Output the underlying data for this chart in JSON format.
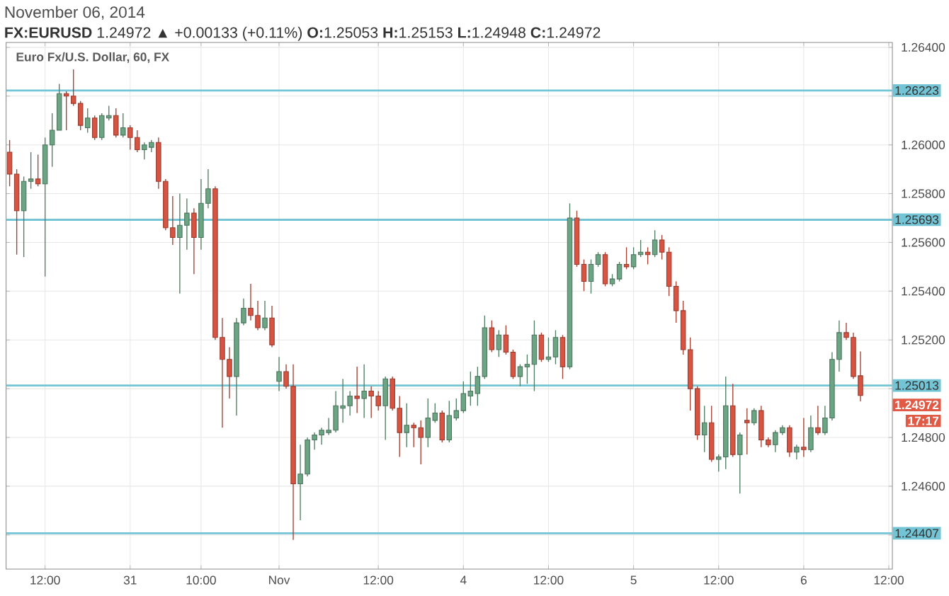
{
  "chart_data": {
    "type": "candlestick",
    "title": "Euro Fx/U.S. Dollar, 60, FX",
    "subtitle": "**FX:EURUSD** 1.24972 ▲ +0.00133 (+0.11%) **O:**1.25053 **H:**1.25153 **L:**1.24948 **C:**1.24972",
    "annotations": [
      "November 06, 2014",
      "1.24972",
      "17:17"
    ],
    "categories": [
      null,
      null,
      null,
      null,
      null,
      "12:00",
      null,
      null,
      null,
      null,
      null,
      null,
      null,
      null,
      null,
      null,
      null,
      "31",
      null,
      null,
      null,
      null,
      null,
      null,
      null,
      null,
      null,
      "10:00",
      null,
      null,
      null,
      null,
      null,
      null,
      null,
      null,
      null,
      null,
      "Nov",
      null,
      null,
      null,
      null,
      null,
      null,
      null,
      null,
      null,
      null,
      null,
      null,
      null,
      "12:00",
      null,
      null,
      null,
      null,
      null,
      null,
      null,
      null,
      null,
      null,
      null,
      "4",
      null,
      null,
      null,
      null,
      null,
      null,
      null,
      null,
      null,
      null,
      null,
      "12:00",
      null,
      null,
      null,
      null,
      null,
      null,
      null,
      null,
      null,
      null,
      null,
      "5",
      null,
      null,
      null,
      null,
      null,
      null,
      null,
      null,
      null,
      null,
      null,
      "12:00",
      null,
      null,
      null,
      null,
      null,
      null,
      null,
      null,
      null,
      null,
      null,
      "6",
      null,
      null,
      null,
      null,
      null,
      null,
      null,
      null,
      null,
      null,
      null,
      "12:00"
    ],
    "ohlc": [
      [
        1.2597,
        1.2602,
        1.2583,
        1.2588
      ],
      [
        1.2588,
        1.259,
        1.2555,
        1.2573
      ],
      [
        1.2573,
        1.2587,
        1.2554,
        1.2585
      ],
      [
        1.2585,
        1.2597,
        1.2582,
        1.2586
      ],
      [
        1.2586,
        1.2596,
        1.2583,
        1.2584
      ],
      [
        1.2584,
        1.2603,
        1.2546,
        1.26
      ],
      [
        1.26,
        1.2613,
        1.2591,
        1.2606
      ],
      [
        1.2606,
        1.2625,
        1.2606,
        1.2621
      ],
      [
        1.2621,
        1.2622,
        1.2606,
        1.262
      ],
      [
        1.262,
        1.2631,
        1.2616,
        1.2617
      ],
      [
        1.2617,
        1.2618,
        1.2606,
        1.2608
      ],
      [
        1.2607,
        1.2615,
        1.2605,
        1.2611
      ],
      [
        1.2611,
        1.2612,
        1.2602,
        1.2603
      ],
      [
        1.2603,
        1.2613,
        1.2602,
        1.2612
      ],
      [
        1.2611,
        1.2616,
        1.261,
        1.2612
      ],
      [
        1.2612,
        1.2615,
        1.2603,
        1.2604
      ],
      [
        1.2604,
        1.2613,
        1.2603,
        1.2607
      ],
      [
        1.2607,
        1.2608,
        1.2598,
        1.2603
      ],
      [
        1.2603,
        1.2606,
        1.2597,
        1.2598
      ],
      [
        1.2598,
        1.2601,
        1.2594,
        1.26
      ],
      [
        1.2599,
        1.2602,
        1.2597,
        1.2601
      ],
      [
        1.2601,
        1.2603,
        1.2582,
        1.2585
      ],
      [
        1.2585,
        1.2586,
        1.2565,
        1.2566
      ],
      [
        1.2566,
        1.2579,
        1.2559,
        1.2562
      ],
      [
        1.2562,
        1.258,
        1.2539,
        1.2567
      ],
      [
        1.2567,
        1.2578,
        1.2557,
        1.2572
      ],
      [
        1.2572,
        1.2574,
        1.2547,
        1.2562
      ],
      [
        1.2562,
        1.2586,
        1.2557,
        1.2576
      ],
      [
        1.2576,
        1.259,
        1.2574,
        1.2582
      ],
      [
        1.2582,
        1.2583,
        1.252,
        1.2521
      ],
      [
        1.2521,
        1.2529,
        1.2484,
        1.2512
      ],
      [
        1.2512,
        1.2517,
        1.2496,
        1.2505
      ],
      [
        1.2505,
        1.2529,
        1.2489,
        1.2527
      ],
      [
        1.2527,
        1.2537,
        1.2526,
        1.2533
      ],
      [
        1.2533,
        1.2543,
        1.2528,
        1.253
      ],
      [
        1.253,
        1.2536,
        1.2524,
        1.2525
      ],
      [
        1.2525,
        1.2536,
        1.2524,
        1.2529
      ],
      [
        1.2529,
        1.2534,
        1.2517,
        1.2518
      ],
      [
        1.2503,
        1.2513,
        1.2499,
        1.2507
      ],
      [
        1.2507,
        1.251,
        1.25,
        1.2501
      ],
      [
        1.2501,
        1.251,
        1.2438,
        1.2461
      ],
      [
        1.2461,
        1.2477,
        1.2446,
        1.2465
      ],
      [
        1.2465,
        1.248,
        1.2464,
        1.2479
      ],
      [
        1.2479,
        1.2482,
        1.2475,
        1.2481
      ],
      [
        1.2481,
        1.2484,
        1.2477,
        1.2483
      ],
      [
        1.2482,
        1.2488,
        1.2481,
        1.2483
      ],
      [
        1.2483,
        1.2499,
        1.2482,
        1.2493
      ],
      [
        1.2492,
        1.2504,
        1.2486,
        1.2493
      ],
      [
        1.2493,
        1.2499,
        1.2489,
        1.2497
      ],
      [
        1.2497,
        1.2509,
        1.249,
        1.2496
      ],
      [
        1.2496,
        1.251,
        1.2488,
        1.2499
      ],
      [
        1.2499,
        1.2501,
        1.2488,
        1.2497
      ],
      [
        1.2497,
        1.2499,
        1.2491,
        1.2493
      ],
      [
        1.2493,
        1.2505,
        1.2479,
        1.2504
      ],
      [
        1.2504,
        1.2505,
        1.2491,
        1.2492
      ],
      [
        1.2492,
        1.2497,
        1.2472,
        1.2482
      ],
      [
        1.2482,
        1.2494,
        1.2476,
        1.2485
      ],
      [
        1.2485,
        1.2486,
        1.2476,
        1.2484
      ],
      [
        1.2484,
        1.2487,
        1.2469,
        1.248
      ],
      [
        1.248,
        1.2496,
        1.2476,
        1.2488
      ],
      [
        1.2487,
        1.2494,
        1.2486,
        1.249
      ],
      [
        1.249,
        1.2491,
        1.2478,
        1.2479
      ],
      [
        1.2479,
        1.2495,
        1.2478,
        1.2489
      ],
      [
        1.2488,
        1.2496,
        1.2487,
        1.2491
      ],
      [
        1.2491,
        1.2503,
        1.249,
        1.2498
      ],
      [
        1.2497,
        1.2507,
        1.2493,
        1.2499
      ],
      [
        1.2498,
        1.2509,
        1.2493,
        1.2505
      ],
      [
        1.2505,
        1.253,
        1.2504,
        1.2525
      ],
      [
        1.2525,
        1.2528,
        1.2515,
        1.2516
      ],
      [
        1.2516,
        1.2524,
        1.2513,
        1.2522
      ],
      [
        1.2522,
        1.2526,
        1.2514,
        1.2515
      ],
      [
        1.2515,
        1.2516,
        1.2504,
        1.2505
      ],
      [
        1.2505,
        1.251,
        1.2501,
        1.2509
      ],
      [
        1.2509,
        1.2514,
        1.2502,
        1.251
      ],
      [
        1.251,
        1.2528,
        1.2499,
        1.2522
      ],
      [
        1.2522,
        1.2523,
        1.2511,
        1.2512
      ],
      [
        1.2512,
        1.2521,
        1.2511,
        1.2513
      ],
      [
        1.2513,
        1.2524,
        1.251,
        1.2521
      ],
      [
        1.2521,
        1.2522,
        1.2504,
        1.2509
      ],
      [
        1.2509,
        1.2576,
        1.2508,
        1.257
      ],
      [
        1.257,
        1.2573,
        1.255,
        1.2551
      ],
      [
        1.2551,
        1.2553,
        1.254,
        1.2544
      ],
      [
        1.2544,
        1.2553,
        1.2539,
        1.2551
      ],
      [
        1.2551,
        1.2556,
        1.255,
        1.2555
      ],
      [
        1.2555,
        1.2556,
        1.2542,
        1.2543
      ],
      [
        1.2543,
        1.2547,
        1.2542,
        1.2545
      ],
      [
        1.2545,
        1.2552,
        1.2544,
        1.2551
      ],
      [
        1.2551,
        1.2558,
        1.2549,
        1.255
      ],
      [
        1.255,
        1.2558,
        1.2549,
        1.2555
      ],
      [
        1.2555,
        1.2561,
        1.2554,
        1.2556
      ],
      [
        1.2556,
        1.2558,
        1.2551,
        1.2555
      ],
      [
        1.2555,
        1.2565,
        1.2554,
        1.2561
      ],
      [
        1.2561,
        1.2563,
        1.2553,
        1.2556
      ],
      [
        1.2556,
        1.2558,
        1.2538,
        1.2542
      ],
      [
        1.2542,
        1.2544,
        1.2527,
        1.2532
      ],
      [
        1.2532,
        1.2536,
        1.2514,
        1.2516
      ],
      [
        1.2516,
        1.2521,
        1.2491,
        1.25
      ],
      [
        1.25,
        1.2501,
        1.2479,
        1.2481
      ],
      [
        1.2481,
        1.2493,
        1.2474,
        1.2486
      ],
      [
        1.2486,
        1.2493,
        1.247,
        1.2471
      ],
      [
        1.2471,
        1.2473,
        1.2466,
        1.2472
      ],
      [
        1.2472,
        1.2505,
        1.2467,
        1.2493
      ],
      [
        1.2493,
        1.2502,
        1.2472,
        1.2473
      ],
      [
        1.2473,
        1.2482,
        1.2457,
        1.2481
      ],
      [
        1.2487,
        1.2492,
        1.2473,
        1.2486
      ],
      [
        1.2486,
        1.2492,
        1.2485,
        1.2491
      ],
      [
        1.2491,
        1.2493,
        1.2476,
        1.2479
      ],
      [
        1.2479,
        1.248,
        1.2476,
        1.2477
      ],
      [
        1.2477,
        1.2483,
        1.2474,
        1.2482
      ],
      [
        1.2482,
        1.2485,
        1.2481,
        1.2484
      ],
      [
        1.2484,
        1.2485,
        1.2472,
        1.2474
      ],
      [
        1.2474,
        1.2477,
        1.2471,
        1.2476
      ],
      [
        1.2476,
        1.2488,
        1.2472,
        1.2475
      ],
      [
        1.2475,
        1.2489,
        1.2474,
        1.2484
      ],
      [
        1.2484,
        1.2493,
        1.2481,
        1.2482
      ],
      [
        1.2482,
        1.2493,
        1.2481,
        1.2488
      ],
      [
        1.2488,
        1.2515,
        1.2487,
        1.2512
      ],
      [
        1.2512,
        1.2528,
        1.2507,
        1.2523
      ],
      [
        1.2523,
        1.2527,
        1.252,
        1.2521
      ],
      [
        1.2521,
        1.2523,
        1.2504,
        1.2505
      ],
      [
        1.25053,
        1.25153,
        1.24948,
        1.24972
      ],
      null,
      null,
      null,
      null
    ],
    "colors": [
      "#d75442",
      "#d75442",
      "#6ba583",
      "#6ba583",
      "#d75442",
      "#6ba583",
      "#6ba583",
      "#6ba583",
      "#d75442",
      "#d75442",
      "#d75442",
      "#6ba583",
      "#d75442",
      "#6ba583",
      "#6ba583",
      "#d75442",
      "#6ba583",
      "#d75442",
      "#d75442",
      "#6ba583",
      "#6ba583",
      "#d75442",
      "#d75442",
      "#d75442",
      "#6ba583",
      "#6ba583",
      "#d75442",
      "#6ba583",
      "#6ba583",
      "#d75442",
      "#d75442",
      "#d75442",
      "#6ba583",
      "#6ba583",
      "#d75442",
      "#d75442",
      "#6ba583",
      "#d75442",
      "#6ba583",
      "#d75442",
      "#d75442",
      "#6ba583",
      "#6ba583",
      "#6ba583",
      "#6ba583",
      "#6ba583",
      "#6ba583",
      "#6ba583",
      "#6ba583",
      "#d75442",
      "#6ba583",
      "#d75442",
      "#d75442",
      "#6ba583",
      "#d75442",
      "#d75442",
      "#6ba583",
      "#d75442",
      "#d75442",
      "#6ba583",
      "#6ba583",
      "#d75442",
      "#6ba583",
      "#6ba583",
      "#6ba583",
      "#6ba583",
      "#6ba583",
      "#6ba583",
      "#d75442",
      "#6ba583",
      "#d75442",
      "#d75442",
      "#6ba583",
      "#6ba583",
      "#6ba583",
      "#d75442",
      "#6ba583",
      "#6ba583",
      "#d75442",
      "#6ba583",
      "#d75442",
      "#d75442",
      "#6ba583",
      "#6ba583",
      "#d75442",
      "#6ba583",
      "#6ba583",
      "#d75442",
      "#6ba583",
      "#6ba583",
      "#d75442",
      "#6ba583",
      "#d75442",
      "#d75442",
      "#d75442",
      "#d75442",
      "#d75442",
      "#d75442",
      "#6ba583",
      "#d75442",
      "#6ba583",
      "#6ba583",
      "#d75442",
      "#6ba583",
      "#d75442",
      "#6ba583",
      "#d75442",
      "#d75442",
      "#6ba583",
      "#6ba583",
      "#d75442",
      "#6ba583",
      "#d75442",
      "#6ba583",
      "#d75442",
      "#6ba583",
      "#6ba583",
      "#6ba583",
      "#d75442",
      "#d75442",
      "#d75442",
      null,
      null,
      null,
      null
    ],
    "ylim": [
      1.2426,
      1.2642
    ],
    "yticks": [
      {
        "value": 1.244,
        "label": null
      },
      {
        "value": 1.246,
        "label": "1.24600"
      },
      {
        "value": 1.248,
        "label": "1.24800"
      },
      {
        "value": 1.25,
        "label": null
      },
      {
        "value": 1.252,
        "label": "1.25200"
      },
      {
        "value": 1.254,
        "label": "1.25400"
      },
      {
        "value": 1.256,
        "label": "1.25600"
      },
      {
        "value": 1.258,
        "label": "1.25800"
      },
      {
        "value": 1.26,
        "label": "1.26000"
      },
      {
        "value": 1.262,
        "label": null
      },
      {
        "value": 1.264,
        "label": "1.26400"
      }
    ],
    "grid": true,
    "ref_lines": [
      {
        "axis": "y",
        "value": 1.26223,
        "label": "1.26223",
        "color": "#73c5d5"
      },
      {
        "axis": "y",
        "value": 1.25693,
        "label": "1.25693",
        "color": "#73c5d5"
      },
      {
        "axis": "y",
        "value": 1.25013,
        "label": "1.25013",
        "color": "#73c5d5"
      },
      {
        "axis": "y",
        "value": 1.24407,
        "label": "1.24407",
        "color": "#73c5d5"
      }
    ]
  }
}
